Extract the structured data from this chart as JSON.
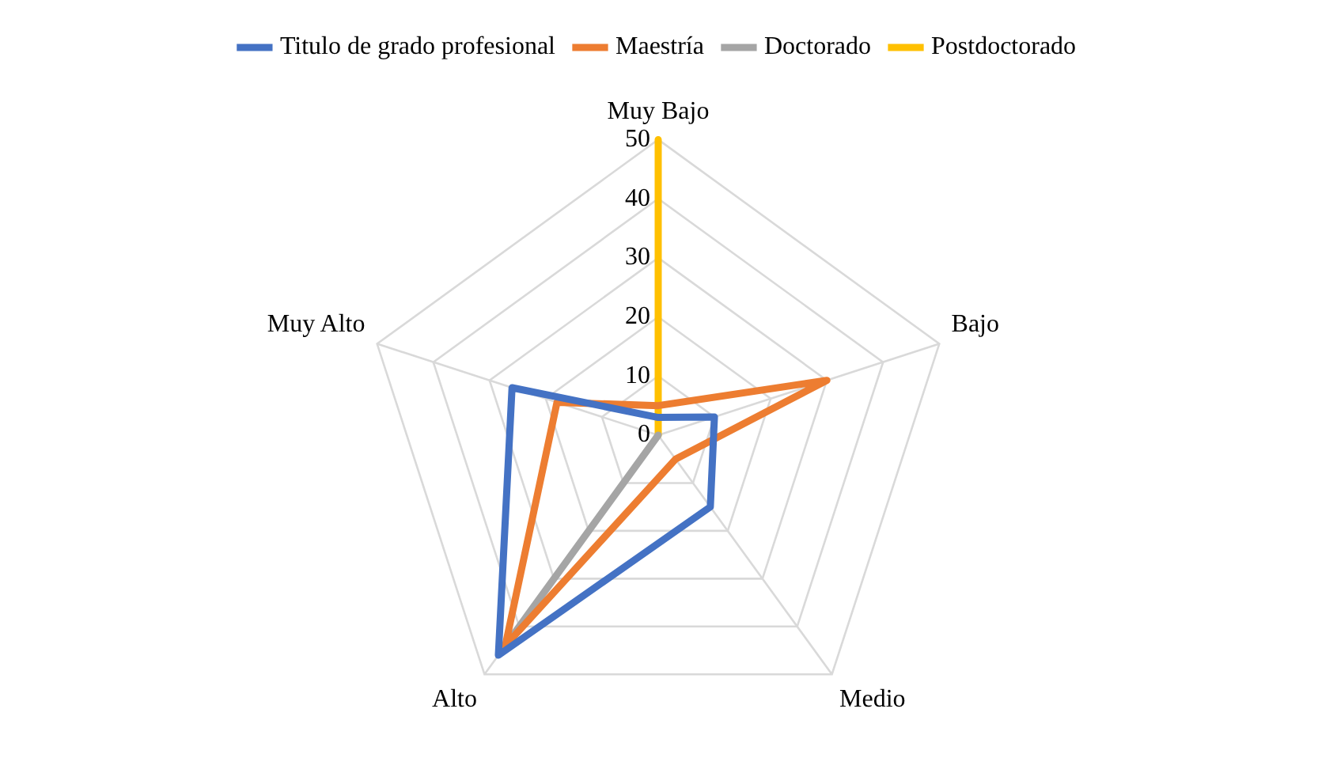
{
  "chart_data": {
    "type": "radar",
    "categories": [
      "Muy Bajo",
      "Bajo",
      "Medio",
      "Alto",
      "Muy Alto"
    ],
    "series": [
      {
        "name": "Titulo de grado profesional",
        "color": "#4472c4",
        "values": [
          3,
          10,
          15,
          46,
          26
        ]
      },
      {
        "name": "Maestría",
        "color": "#ed7d31",
        "values": [
          5,
          30,
          5,
          44,
          18
        ]
      },
      {
        "name": "Doctorado",
        "color": "#a5a5a5",
        "values": [
          0,
          0,
          0,
          45,
          0
        ]
      },
      {
        "name": "Postdoctorado",
        "color": "#ffc000",
        "values": [
          50,
          0,
          0,
          0,
          0
        ]
      }
    ],
    "ylim": [
      0,
      50
    ],
    "yticks": [
      0,
      10,
      20,
      30,
      40,
      50
    ],
    "grid": true,
    "legend": "top",
    "marker": "none"
  }
}
